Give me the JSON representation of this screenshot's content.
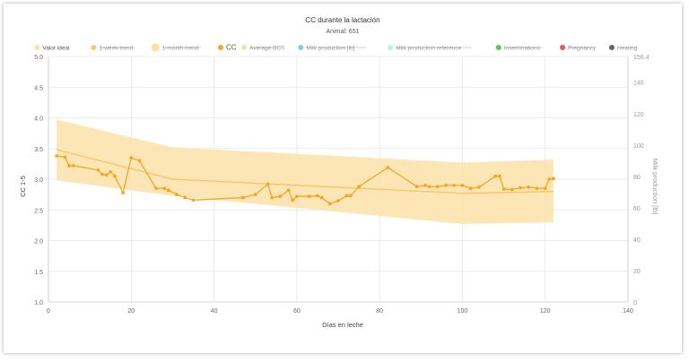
{
  "chart_data": {
    "type": "line",
    "title": "CC durante la lactación",
    "subtitle": "Animal: 651",
    "xlabel": "Días en leche",
    "ylabel": "CC 1-5",
    "y2label": "Milk production [lb]",
    "xlim": [
      0,
      140
    ],
    "ylim": [
      1.0,
      5.0
    ],
    "y2lim": [
      0,
      156.4
    ],
    "x_ticks": [
      0,
      20,
      40,
      60,
      80,
      100,
      120,
      140
    ],
    "y_ticks": [
      1.0,
      1.5,
      2.0,
      2.5,
      3.0,
      3.5,
      4.0,
      4.5,
      5.0
    ],
    "y2_ticks": [
      0,
      20,
      40,
      60,
      80,
      100,
      120,
      140,
      156.4
    ],
    "grid": true,
    "legend_position": "top",
    "legend": [
      {
        "label": "Valor ideal",
        "color": "#fde2a8",
        "hidden": false,
        "size": "normal"
      },
      {
        "label": "1-week-trend",
        "color": "#f5b740",
        "hidden": true,
        "size": "normal"
      },
      {
        "label": "1-month-trend",
        "color": "#fcd67a",
        "hidden": true,
        "size": "large"
      },
      {
        "label": "CC",
        "color": "#f5a623",
        "hidden": false,
        "size": "normal"
      },
      {
        "label": "Average BCS",
        "color": "#fcd089",
        "hidden": true,
        "size": "normal"
      },
      {
        "label": "Milk production [lb]",
        "color": "#4fc3e8",
        "hidden": true,
        "size": "normal"
      },
      {
        "label": "Milk production reference",
        "color": "#a6e4f5",
        "hidden": true,
        "size": "normal"
      },
      {
        "label": "Inseminations",
        "color": "#1db31d",
        "hidden": true,
        "size": "normal"
      },
      {
        "label": "Pregnancy",
        "color": "#e21b1b",
        "hidden": true,
        "size": "normal"
      },
      {
        "label": "Heating",
        "color": "#333333",
        "hidden": true,
        "size": "normal"
      }
    ],
    "ideal_band": {
      "x": [
        2,
        30,
        100,
        122
      ],
      "upper": [
        3.97,
        3.52,
        3.27,
        3.32
      ],
      "lower": [
        2.98,
        2.73,
        2.27,
        2.3
      ]
    },
    "series": [
      {
        "name": "CC",
        "color": "#f5a623",
        "x": [
          2,
          4,
          5,
          6,
          12,
          13,
          14,
          15,
          16,
          18,
          20,
          22,
          26,
          28,
          29,
          31,
          33,
          35,
          47,
          50,
          53,
          54,
          56,
          58,
          59,
          60,
          63,
          65,
          66,
          68,
          70,
          72,
          73,
          75,
          82,
          89,
          91,
          92,
          94,
          96,
          98,
          100,
          102,
          104,
          108,
          109,
          110,
          112,
          114,
          116,
          118,
          120,
          121,
          122
        ],
        "values": [
          3.38,
          3.36,
          3.22,
          3.22,
          3.15,
          3.08,
          3.07,
          3.12,
          3.05,
          2.78,
          3.35,
          3.3,
          2.85,
          2.85,
          2.82,
          2.75,
          2.7,
          2.66,
          2.7,
          2.75,
          2.92,
          2.7,
          2.72,
          2.82,
          2.66,
          2.72,
          2.72,
          2.73,
          2.7,
          2.6,
          2.65,
          2.73,
          2.73,
          2.88,
          3.19,
          2.88,
          2.9,
          2.88,
          2.88,
          2.9,
          2.9,
          2.9,
          2.85,
          2.87,
          3.05,
          3.05,
          2.84,
          2.83,
          2.86,
          2.87,
          2.85,
          2.85,
          3.0,
          3.01
        ]
      },
      {
        "name": "Valor ideal",
        "color": "#f8c66a",
        "x": [
          2,
          30,
          100,
          122
        ],
        "values": [
          3.48,
          3.0,
          2.77,
          2.8
        ]
      }
    ]
  }
}
